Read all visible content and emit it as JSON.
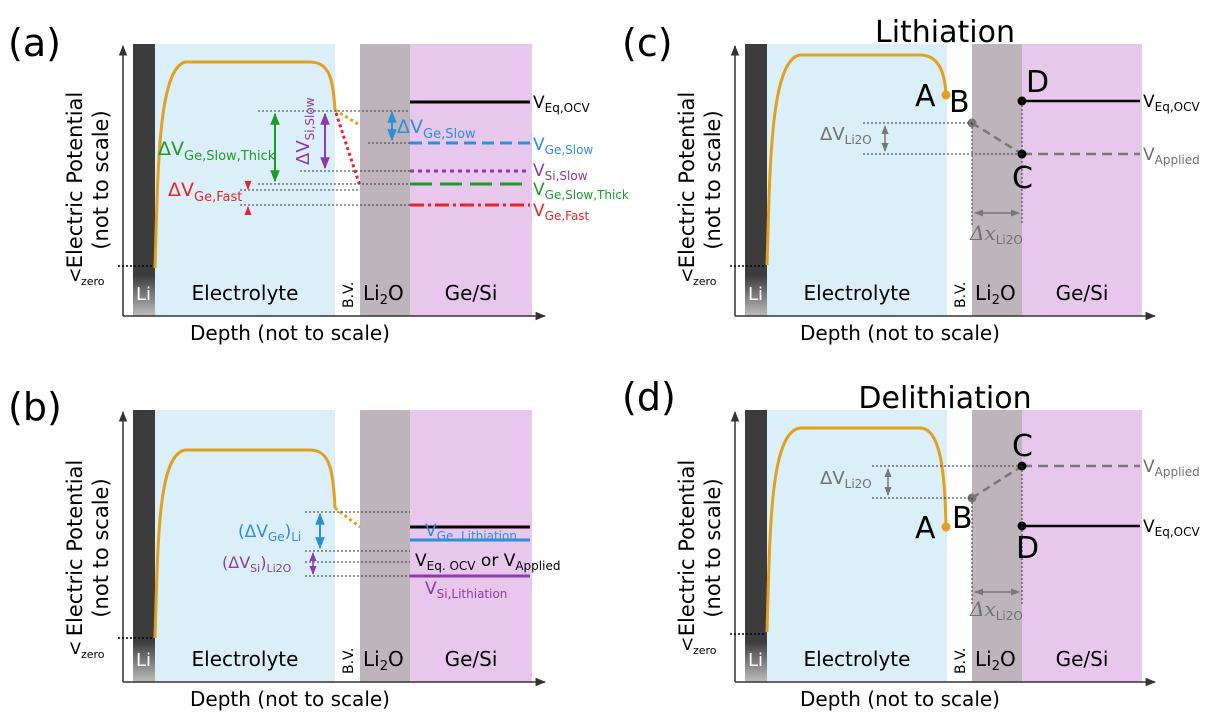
{
  "panels": {
    "a": {
      "letter": "(a)",
      "regions": {
        "li": "Li",
        "electrolyte": "Electrolyte",
        "bv": "B.V.",
        "li2o": "Li",
        "li2o_sub": "2",
        "li2o_tail": "O",
        "gesi": "Ge/Si"
      },
      "ylabel_1": "Electric Potential",
      "ylabel_2": "(not to scale)",
      "xlabel": "Depth (not to scale)",
      "vzero": "V",
      "vzero_sub": "zero",
      "levels": {
        "eq_ocv": {
          "v": "V",
          "sub": "Eq,OCV",
          "color": "#000000"
        },
        "ge_slow": {
          "v": "V",
          "sub": "Ge,Slow",
          "color": "#2e8fd6"
        },
        "si_slow": {
          "v": "V",
          "sub": "Si,Slow",
          "color": "#8e3aa8"
        },
        "ge_slow_thick": {
          "v": "V",
          "sub": "Ge,Slow,Thick",
          "color": "#1e9a2a"
        },
        "ge_fast": {
          "v": "V",
          "sub": "Ge,Fast",
          "color": "#e8242a"
        }
      },
      "deltas": {
        "ge_slow_thick": {
          "d": "ΔV",
          "sub": "Ge,Slow,Thick"
        },
        "si_slow": {
          "d": "ΔV",
          "sub": "Si,Slow"
        },
        "ge_slow": {
          "d": "ΔV",
          "sub": "Ge,Slow"
        },
        "ge_fast": {
          "d": "ΔV",
          "sub": "Ge,Fast"
        }
      }
    },
    "b": {
      "letter": "(b)",
      "regions": {
        "li": "Li",
        "electrolyte": "Electrolyte",
        "bv": "B.V.",
        "li2o": "Li",
        "li2o_sub": "2",
        "li2o_tail": "O",
        "gesi": "Ge/Si"
      },
      "ylabel_1": "Electric Potential",
      "ylabel_2": "(not to scale)",
      "xlabel": "Depth (not to scale)",
      "vzero": "V",
      "vzero_sub": "zero",
      "ge_lith": {
        "v": "V",
        "sub": "Ge, Lithiation"
      },
      "eq": {
        "v": "V",
        "sub": "Eq. OCV",
        "or": " or V",
        "sub2": "Applied"
      },
      "si_lith": {
        "v": "V",
        "sub": "Si,Lithiation"
      },
      "dvge": {
        "pre": "(ΔV",
        "sub": "Ge",
        "post": ")",
        "sub2": "Li"
      },
      "dvsi": {
        "pre": "(ΔV",
        "sub": "Si",
        "post": ")",
        "sub2": "Li2O"
      }
    },
    "c": {
      "letter": "(c)",
      "title": "Lithiation",
      "regions": {
        "li": "Li",
        "electrolyte": "Electrolyte",
        "bv": "B.V.",
        "li2o": "Li",
        "li2o_sub": "2",
        "li2o_tail": "O",
        "gesi": "Ge/Si"
      },
      "ylabel_1": "Electric Potential",
      "ylabel_2": "(not to scale)",
      "xlabel": "Depth (not to scale)",
      "vzero": "V",
      "vzero_sub": "zero",
      "points": {
        "a": "A",
        "b": "B",
        "c": "C",
        "d": "D"
      },
      "eq": {
        "v": "V",
        "sub": "Eq,OCV"
      },
      "applied": {
        "v": "V",
        "sub": "Applied"
      },
      "dv": {
        "d": "ΔV",
        "sub": "Li2O"
      },
      "dx": {
        "d": "Δx",
        "sub": "Li2O"
      }
    },
    "d": {
      "letter": "(d)",
      "title": "Delithiation",
      "regions": {
        "li": "Li",
        "electrolyte": "Electrolyte",
        "bv": "B.V.",
        "li2o": "Li",
        "li2o_sub": "2",
        "li2o_tail": "O",
        "gesi": "Ge/Si"
      },
      "ylabel_1": "Electric Potential",
      "ylabel_2": "(not to scale)",
      "xlabel": "Depth (not to scale)",
      "vzero": "V",
      "vzero_sub": "zero",
      "points": {
        "a": "A",
        "b": "B",
        "c": "C",
        "d": "D"
      },
      "eq": {
        "v": "V",
        "sub": "Eq,OCV"
      },
      "applied": {
        "v": "V",
        "sub": "Applied"
      },
      "dv": {
        "d": "ΔV",
        "sub": "Li2O"
      },
      "dx": {
        "d": "Δx",
        "sub": "Li2O"
      }
    }
  },
  "colors": {
    "electrolyte": "#dbeff8",
    "li2o": "#bdb5bb",
    "gesi": "#e8c7ec",
    "li": "#3c3c3c",
    "curve": "#e0a020",
    "grey": "#707070"
  }
}
